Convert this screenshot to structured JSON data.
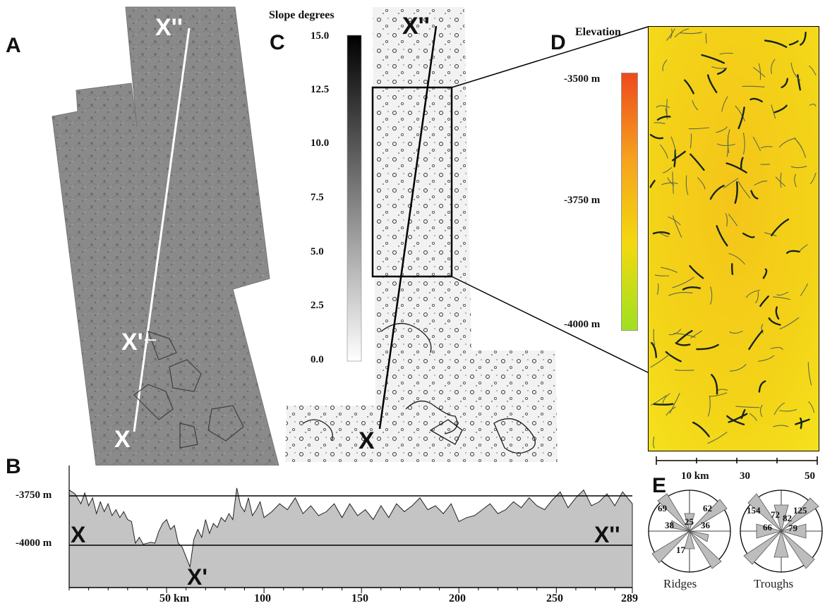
{
  "panels": {
    "a": {
      "letter": "A"
    },
    "b": {
      "letter": "B"
    },
    "c": {
      "letter": "C"
    },
    "d": {
      "letter": "D"
    },
    "e": {
      "letter": "E"
    }
  },
  "labels": {
    "x": "X",
    "x_prime": "X'",
    "x_double_prime": "X''"
  },
  "slope": {
    "title": "Slope degrees",
    "ticks": [
      "15.0",
      "12.5",
      "10.0",
      "7.5",
      "5.0",
      "2.5",
      "0.0"
    ]
  },
  "elevation": {
    "title": "Elevation",
    "ticks": [
      "-3500 m",
      "-3750 m",
      "-4000 m"
    ],
    "colors": [
      "#ee4a1c",
      "#f6a21e",
      "#f3d90f",
      "#9fe021"
    ]
  },
  "scalebar": {
    "ticks": [
      "10 km",
      "30",
      "50"
    ]
  },
  "profile": {
    "y_ticks": [
      "-3750 m",
      "-4000 m"
    ],
    "x_ticks": [
      "50 km",
      "100",
      "150",
      "200",
      "250",
      "289"
    ]
  },
  "rose": {
    "ridges": {
      "caption": "Ridges",
      "values": [
        "69",
        "62",
        "38",
        "25",
        "36",
        "17"
      ]
    },
    "troughs": {
      "caption": "Troughs",
      "values": [
        "154",
        "72",
        "82",
        "125",
        "66",
        "79"
      ]
    }
  },
  "chart_data": {
    "type": "area",
    "title": "",
    "xlabel": "",
    "ylabel": "",
    "x_ticks": [
      "50 km",
      "100",
      "150",
      "200",
      "250",
      "289"
    ],
    "y_ticks": [
      "-3750 m",
      "-4000 m"
    ],
    "xlim": [
      0,
      289
    ],
    "ylim": [
      -4150,
      -3700
    ],
    "series": [
      {
        "x": [
          0,
          3,
          6,
          8,
          10,
          12,
          14,
          16,
          18,
          20,
          22,
          24,
          26,
          28,
          30,
          32,
          34,
          36,
          38,
          40,
          42,
          44,
          46,
          48,
          50,
          52,
          54,
          56,
          58,
          60,
          62,
          64,
          66,
          68,
          70,
          72,
          74,
          76,
          78,
          80,
          82,
          84,
          86,
          88,
          90,
          92,
          94,
          96,
          98,
          100,
          104,
          108,
          112,
          116,
          120,
          124,
          128,
          132,
          136,
          140,
          144,
          148,
          152,
          156,
          160,
          164,
          168,
          172,
          176,
          180,
          184,
          188,
          192,
          196,
          200,
          204,
          208,
          212,
          216,
          220,
          224,
          228,
          232,
          236,
          240,
          244,
          248,
          252,
          256,
          260,
          264,
          268,
          272,
          276,
          280,
          284,
          289
        ],
        "values": [
          -3720,
          -3740,
          -3790,
          -3735,
          -3800,
          -3760,
          -3840,
          -3780,
          -3830,
          -3790,
          -3850,
          -3820,
          -3860,
          -3830,
          -3870,
          -3880,
          -3990,
          -3960,
          -3995,
          -3990,
          -3985,
          -3990,
          -3930,
          -3890,
          -3870,
          -3920,
          -3900,
          -3990,
          -4010,
          -4060,
          -4110,
          -3970,
          -3920,
          -3960,
          -3870,
          -3940,
          -3890,
          -3910,
          -3860,
          -3880,
          -3840,
          -3870,
          -3710,
          -3800,
          -3830,
          -3760,
          -3850,
          -3820,
          -3780,
          -3860,
          -3830,
          -3790,
          -3820,
          -3760,
          -3840,
          -3800,
          -3850,
          -3830,
          -3790,
          -3860,
          -3790,
          -3850,
          -3820,
          -3870,
          -3800,
          -3860,
          -3790,
          -3830,
          -3800,
          -3760,
          -3820,
          -3800,
          -3840,
          -3790,
          -3880,
          -3860,
          -3850,
          -3820,
          -3790,
          -3840,
          -3820,
          -3780,
          -3810,
          -3760,
          -3800,
          -3820,
          -3770,
          -3730,
          -3810,
          -3760,
          -3720,
          -3800,
          -3780,
          -3740,
          -3800,
          -3730,
          -3790
        ]
      }
    ]
  }
}
